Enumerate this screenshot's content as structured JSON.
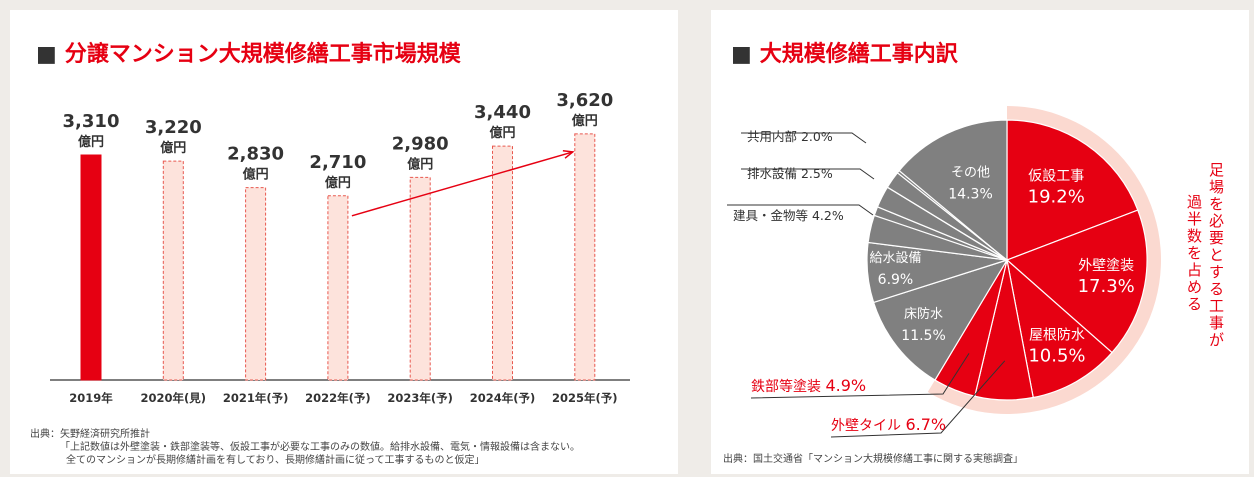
{
  "left": {
    "title_mark": "■",
    "title": "分譲マンション大規模修繕工事市場規模",
    "source_lines": [
      "出典：矢野経済研究所推計",
      "「上記数値は外壁塗装・鉄部塗装等、仮設工事が必要な工事のみの数値。給排水設備、電気・情報設備は含まない。",
      "全てのマンションが長期修繕計画を有しており、長期修繕計画に従って工事するものと仮定」"
    ]
  },
  "right": {
    "title_mark": "■",
    "title": "大規模修繕工事内訳",
    "vertical_note": [
      "足場を必要とする工事が",
      "過半数を占める"
    ],
    "source": "出典：国土交通省「マンション大規模修繕工事に関する実態調査」"
  },
  "colors": {
    "red": "#e60012",
    "pink_fill": "#fde3dc",
    "pink_stroke": "#e8584f",
    "gray": "#808080",
    "band": "#fbd9d0"
  },
  "chart_data": [
    {
      "type": "bar",
      "title": "分譲マンション大規模修繕工事市場規模",
      "categories": [
        "2019年",
        "2020年(見)",
        "2021年(予)",
        "2022年(予)",
        "2023年(予)",
        "2024年(予)",
        "2025年(予)"
      ],
      "values": [
        3310,
        3220,
        2830,
        2710,
        2980,
        3440,
        3620
      ],
      "value_labels": [
        "3,310",
        "3,220",
        "2,830",
        "2,710",
        "2,980",
        "3,440",
        "3,620"
      ],
      "unit_label": "億円",
      "styles": [
        "actual",
        "forecast",
        "forecast",
        "forecast",
        "forecast",
        "forecast",
        "forecast"
      ],
      "trend_arrow": {
        "from": "2022年(予)",
        "to": "2025年(予)"
      }
    },
    {
      "type": "pie",
      "title": "大規模修繕工事内訳",
      "slices": [
        {
          "label": "仮設工事",
          "value": 19.2,
          "display": "19.2%",
          "color": "#e60012",
          "label_pos": "inside"
        },
        {
          "label": "外壁塗装",
          "value": 17.3,
          "display": "17.3%",
          "color": "#e60012",
          "label_pos": "inside"
        },
        {
          "label": "屋根防水",
          "value": 10.5,
          "display": "10.5%",
          "color": "#e60012",
          "label_pos": "inside"
        },
        {
          "label": "外壁タイル",
          "value": 6.7,
          "display": "6.7%",
          "color": "#e60012",
          "label_pos": "outside"
        },
        {
          "label": "鉄部等塗装",
          "value": 4.9,
          "display": "4.9%",
          "color": "#e60012",
          "label_pos": "outside"
        },
        {
          "label": "床防水",
          "value": 11.5,
          "display": "11.5%",
          "color": "#808080",
          "label_pos": "inside"
        },
        {
          "label": "給水設備",
          "value": 6.9,
          "display": "6.9%",
          "color": "#808080",
          "label_pos": "inside"
        },
        {
          "label": "建具・金物等",
          "value": 4.2,
          "display": "4.2%",
          "color": "#808080",
          "label_pos": "outside"
        },
        {
          "label": "排水設備",
          "value": 2.5,
          "display": "2.5%",
          "color": "#808080",
          "label_pos": "outside"
        },
        {
          "label": "共用内部",
          "value": 2.0,
          "display": "2.0%",
          "color": "#808080",
          "label_pos": "outside"
        },
        {
          "label": "その他",
          "value": 14.3,
          "display": "14.3%",
          "color": "#808080",
          "label_pos": "inside"
        }
      ],
      "highlight_band": "scaffold-required slices"
    }
  ]
}
